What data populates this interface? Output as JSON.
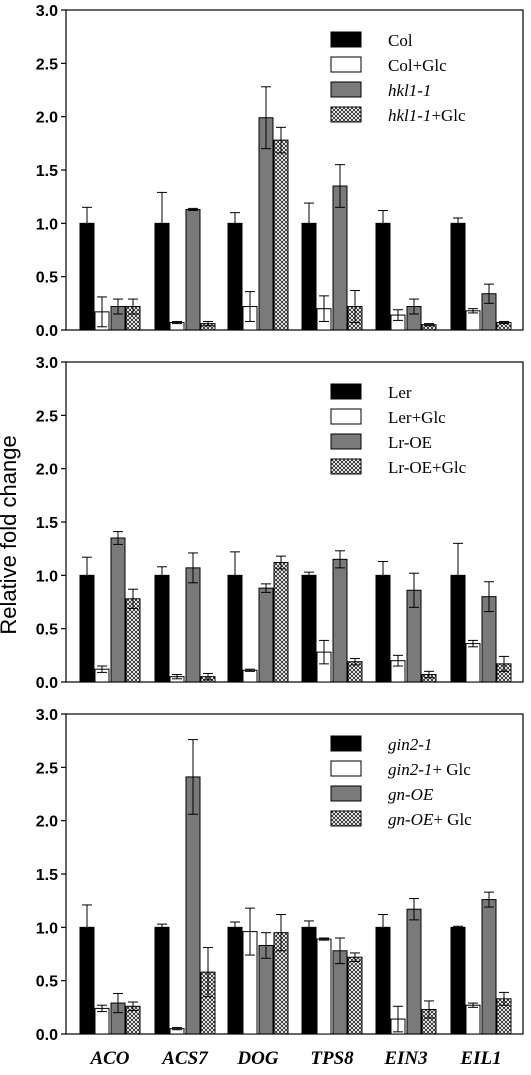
{
  "ylabel": "Relative fold change",
  "colors": {
    "solid": "#000000",
    "open": "#ffffff",
    "gray": "#7a7a7a",
    "hatch": "#ffffff"
  },
  "chart_data": [
    {
      "type": "bar",
      "categories": [
        "ACO",
        "ACS7",
        "DOG",
        "TPS8",
        "EIN3",
        "EIL1"
      ],
      "ylim": [
        0,
        3.0
      ],
      "yticks": [
        "0.0",
        "0.5",
        "1.0",
        "1.5",
        "2.0",
        "2.5",
        "3.0"
      ],
      "legend_position": "top-right",
      "series": [
        {
          "legend": [
            {
              "text": "Col",
              "italic": false
            }
          ],
          "values": [
            1.0,
            1.0,
            1.0,
            1.0,
            1.0,
            1.0
          ],
          "errors": [
            0.15,
            0.29,
            0.1,
            0.19,
            0.12,
            0.05
          ]
        },
        {
          "legend": [
            {
              "text": "Col+Glc",
              "italic": false
            }
          ],
          "values": [
            0.17,
            0.07,
            0.22,
            0.2,
            0.14,
            0.18
          ],
          "errors": [
            0.14,
            0.01,
            0.14,
            0.12,
            0.05,
            0.02
          ]
        },
        {
          "legend": [
            {
              "text": "hkl1-1",
              "italic": true
            }
          ],
          "values": [
            0.22,
            1.13,
            1.99,
            1.35,
            0.22,
            0.34
          ],
          "errors": [
            0.07,
            0.01,
            0.29,
            0.2,
            0.07,
            0.09
          ]
        },
        {
          "legend": [
            {
              "text": "hkl1-1",
              "italic": true
            },
            {
              "text": "+Glc",
              "italic": false
            }
          ],
          "values": [
            0.22,
            0.06,
            1.78,
            0.22,
            0.05,
            0.07
          ],
          "errors": [
            0.07,
            0.02,
            0.12,
            0.15,
            0.01,
            0.01
          ]
        }
      ]
    },
    {
      "type": "bar",
      "categories": [
        "ACO",
        "ACS7",
        "DOG",
        "TPS8",
        "EIN3",
        "EIL1"
      ],
      "ylim": [
        0,
        3.0
      ],
      "yticks": [
        "0.0",
        "0.5",
        "1.0",
        "1.5",
        "2.0",
        "2.5",
        "3.0"
      ],
      "legend_position": "top-right",
      "series": [
        {
          "legend": [
            {
              "text": "Ler",
              "italic": false
            }
          ],
          "values": [
            1.0,
            1.0,
            1.0,
            1.0,
            1.0,
            1.0
          ],
          "errors": [
            0.17,
            0.08,
            0.22,
            0.03,
            0.13,
            0.3
          ]
        },
        {
          "legend": [
            {
              "text": "Ler+Glc",
              "italic": false
            }
          ],
          "values": [
            0.12,
            0.05,
            0.11,
            0.28,
            0.2,
            0.36
          ],
          "errors": [
            0.03,
            0.02,
            0.01,
            0.11,
            0.05,
            0.03
          ]
        },
        {
          "legend": [
            {
              "text": "Lr-OE",
              "italic": false
            }
          ],
          "values": [
            1.35,
            1.07,
            0.88,
            1.15,
            0.86,
            0.8
          ],
          "errors": [
            0.06,
            0.14,
            0.04,
            0.08,
            0.16,
            0.14
          ]
        },
        {
          "legend": [
            {
              "text": "Lr-OE+Glc",
              "italic": false
            }
          ],
          "values": [
            0.78,
            0.05,
            1.12,
            0.19,
            0.07,
            0.17
          ],
          "errors": [
            0.09,
            0.03,
            0.06,
            0.03,
            0.03,
            0.07
          ]
        }
      ]
    },
    {
      "type": "bar",
      "categories": [
        "ACO",
        "ACS7",
        "DOG",
        "TPS8",
        "EIN3",
        "EIL1"
      ],
      "ylim": [
        0,
        3.0
      ],
      "yticks": [
        "0.0",
        "0.5",
        "1.0",
        "1.5",
        "2.0",
        "2.5",
        "3.0"
      ],
      "legend_position": "top-right",
      "series": [
        {
          "legend": [
            {
              "text": "gin2-1",
              "italic": true
            }
          ],
          "values": [
            1.0,
            1.0,
            1.0,
            1.0,
            1.0,
            1.0
          ],
          "errors": [
            0.21,
            0.03,
            0.05,
            0.06,
            0.12,
            0.01
          ]
        },
        {
          "legend": [
            {
              "text": "gin2-1",
              "italic": true
            },
            {
              "text": "+ Glc",
              "italic": false
            }
          ],
          "values": [
            0.24,
            0.05,
            0.96,
            0.89,
            0.14,
            0.27
          ],
          "errors": [
            0.03,
            0.01,
            0.22,
            0.01,
            0.12,
            0.02
          ]
        },
        {
          "legend": [
            {
              "text": "gn-OE",
              "italic": true
            }
          ],
          "values": [
            0.29,
            2.41,
            0.83,
            0.78,
            1.17,
            1.26
          ],
          "errors": [
            0.09,
            0.35,
            0.12,
            0.12,
            0.1,
            0.07
          ]
        },
        {
          "legend": [
            {
              "text": "gn-OE",
              "italic": true
            },
            {
              "text": "+ Glc",
              "italic": false
            }
          ],
          "values": [
            0.26,
            0.58,
            0.95,
            0.72,
            0.23,
            0.33
          ],
          "errors": [
            0.04,
            0.23,
            0.17,
            0.04,
            0.08,
            0.06
          ]
        }
      ]
    }
  ]
}
